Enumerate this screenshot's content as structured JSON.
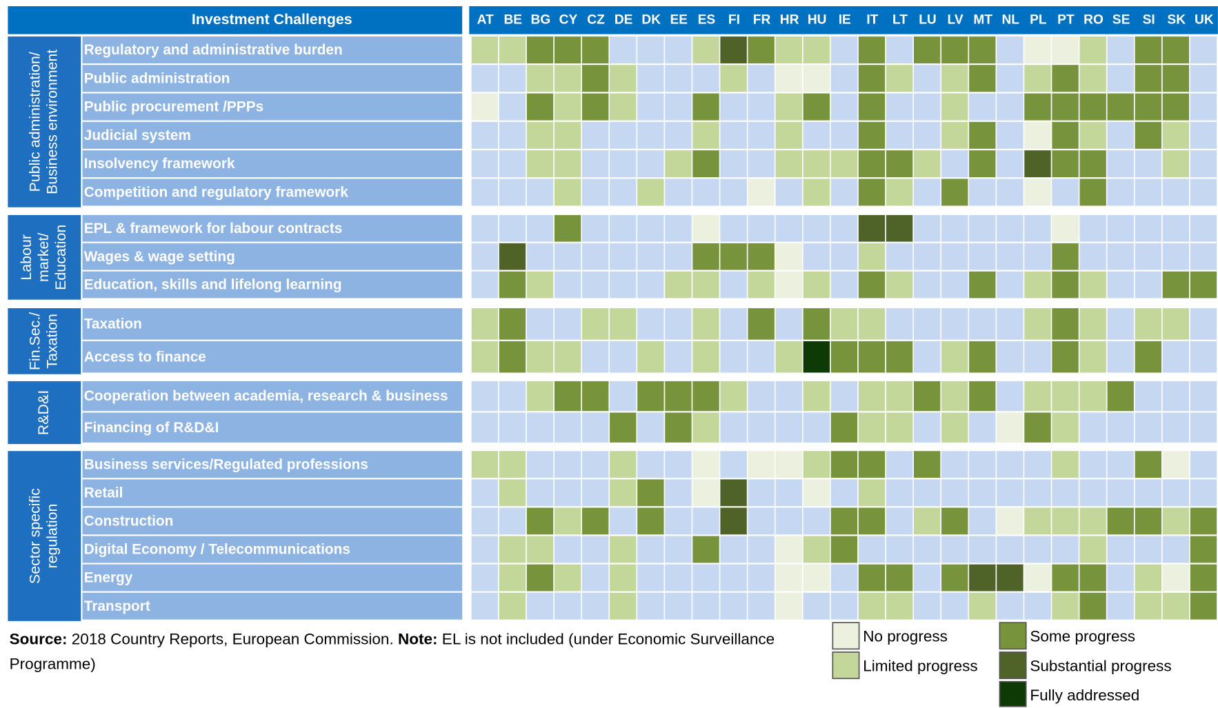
{
  "chart_data": {
    "type": "status-grid",
    "corner_title": "Investment Challenges",
    "columns": [
      "AT",
      "BE",
      "BG",
      "CY",
      "CZ",
      "DE",
      "DK",
      "EE",
      "ES",
      "FI",
      "FR",
      "HR",
      "HU",
      "IE",
      "IT",
      "LT",
      "LU",
      "LV",
      "MT",
      "NL",
      "PL",
      "PT",
      "RO",
      "SE",
      "SI",
      "SK",
      "UK"
    ],
    "empty_color": "#c5d7f1",
    "legend": [
      {
        "label": "No progress",
        "color": "#ebf1de"
      },
      {
        "label": "Limited progress",
        "color": "#c4d79b"
      },
      {
        "label": "Some progress",
        "color": "#77933c"
      },
      {
        "label": "Substantial progress",
        "color": "#4f6228"
      },
      {
        "label": "Fully addressed",
        "color": "#0d3a05"
      }
    ],
    "groups": [
      {
        "label_lines": [
          "Public administration/",
          "Business environment"
        ],
        "rows": [
          {
            "label": "Regulatory and administrative burden",
            "cells": [
              "Limited progress",
              "Limited progress",
              "Some progress",
              "Some progress",
              "Some progress",
              null,
              null,
              null,
              "Limited progress",
              "Substantial progress",
              "Some progress",
              "Limited progress",
              "Limited progress",
              null,
              "Some progress",
              null,
              "Some progress",
              "Some progress",
              "Some progress",
              null,
              "No progress",
              "No progress",
              "Limited progress",
              null,
              "Some progress",
              "Some progress",
              null
            ]
          },
          {
            "label": "Public administration",
            "cells": [
              null,
              null,
              "Limited progress",
              "Limited progress",
              "Some progress",
              "Limited progress",
              null,
              null,
              null,
              "Limited progress",
              null,
              "No progress",
              "No progress",
              null,
              "Some progress",
              "Limited progress",
              null,
              "Limited progress",
              "Some progress",
              null,
              "Limited progress",
              "Some progress",
              "Limited progress",
              null,
              "Some progress",
              "Some progress",
              null
            ]
          },
          {
            "label": "Public procurement /PPPs",
            "cells": [
              "No progress",
              null,
              "Some progress",
              "Limited progress",
              "Some progress",
              "Limited progress",
              null,
              null,
              "Some progress",
              null,
              null,
              "Limited progress",
              "Some progress",
              null,
              "Some progress",
              null,
              null,
              "Limited progress",
              null,
              null,
              "Some progress",
              "Some progress",
              "Some progress",
              "Some progress",
              "Some progress",
              "Some progress",
              null
            ]
          },
          {
            "label": "Judicial system",
            "cells": [
              null,
              null,
              "Limited progress",
              "Limited progress",
              null,
              null,
              null,
              null,
              "Limited progress",
              null,
              null,
              "Limited progress",
              null,
              null,
              "Some progress",
              null,
              null,
              "Limited progress",
              "Some progress",
              null,
              "No progress",
              "Some progress",
              "Limited progress",
              null,
              "Some progress",
              "Limited progress",
              null
            ]
          },
          {
            "label": "Insolvency framework",
            "cells": [
              null,
              null,
              "Limited progress",
              "Limited progress",
              null,
              null,
              null,
              "Limited progress",
              "Some progress",
              null,
              null,
              "Limited progress",
              "Limited progress",
              "Limited progress",
              "Some progress",
              "Some progress",
              "Limited progress",
              null,
              "Some progress",
              null,
              "Substantial progress",
              "Some progress",
              "Some progress",
              null,
              null,
              "Limited progress",
              null
            ]
          },
          {
            "label": "Competition and regulatory framework",
            "cells": [
              null,
              null,
              null,
              "Limited progress",
              null,
              null,
              "Limited progress",
              null,
              null,
              null,
              "No progress",
              null,
              "Limited progress",
              null,
              "Some progress",
              "Limited progress",
              null,
              "Some progress",
              null,
              null,
              "No progress",
              null,
              "Some progress",
              null,
              null,
              null,
              null
            ]
          }
        ]
      },
      {
        "label_lines": [
          "Labour",
          "market/",
          "Education"
        ],
        "rows": [
          {
            "label": "EPL & framework for labour contracts",
            "cells": [
              null,
              null,
              null,
              "Some progress",
              null,
              null,
              null,
              null,
              "No progress",
              null,
              null,
              null,
              null,
              null,
              "Substantial progress",
              "Substantial progress",
              null,
              null,
              null,
              null,
              null,
              "No progress",
              null,
              null,
              null,
              null,
              null
            ]
          },
          {
            "label": "Wages & wage setting",
            "cells": [
              null,
              "Substantial progress",
              null,
              null,
              null,
              null,
              null,
              null,
              "Some progress",
              "Some progress",
              "Some progress",
              "No progress",
              null,
              null,
              "Limited progress",
              null,
              null,
              null,
              null,
              null,
              null,
              "Some progress",
              null,
              null,
              null,
              null,
              null
            ]
          },
          {
            "label": "Education, skills and lifelong learning",
            "cells": [
              null,
              "Some progress",
              "Limited progress",
              null,
              null,
              null,
              null,
              "Limited progress",
              "Limited progress",
              null,
              "Limited progress",
              "No progress",
              "Limited progress",
              null,
              "Some progress",
              "Limited progress",
              null,
              null,
              "Some progress",
              null,
              "Limited progress",
              "Some progress",
              "Limited progress",
              null,
              null,
              "Some progress",
              "Some progress"
            ]
          }
        ]
      },
      {
        "label_lines": [
          "Fin.Sec./",
          "Taxation"
        ],
        "rows": [
          {
            "label": "Taxation",
            "cells": [
              "Limited progress",
              "Some progress",
              null,
              null,
              "Limited progress",
              "Limited progress",
              null,
              null,
              "Limited progress",
              null,
              "Some progress",
              null,
              "Some progress",
              "Limited progress",
              "Limited progress",
              null,
              null,
              null,
              null,
              null,
              "Limited progress",
              "Some progress",
              "Limited progress",
              null,
              "Limited progress",
              "Limited progress",
              null
            ]
          },
          {
            "label": "Access to finance",
            "cells": [
              "Limited progress",
              "Some progress",
              "Limited progress",
              "Limited progress",
              null,
              null,
              "Limited progress",
              null,
              "Limited progress",
              null,
              null,
              "Limited progress",
              "Fully addressed",
              "Some progress",
              "Some progress",
              "Some progress",
              null,
              "Limited progress",
              "Some progress",
              null,
              null,
              "Some progress",
              "Limited progress",
              null,
              "Some progress",
              null,
              null
            ]
          }
        ]
      },
      {
        "label_lines": [
          "R&D&I"
        ],
        "rows": [
          {
            "label": "Cooperation between academia, research & business",
            "cells": [
              null,
              null,
              "Limited progress",
              "Some progress",
              "Some progress",
              null,
              "Some progress",
              "Some progress",
              "Some progress",
              "Limited progress",
              null,
              null,
              "Limited progress",
              null,
              "Limited progress",
              "Limited progress",
              "Some progress",
              "Limited progress",
              "Some progress",
              null,
              "Limited progress",
              "Limited progress",
              "Limited progress",
              "Some progress",
              null,
              null,
              null
            ]
          },
          {
            "label": "Financing of R&D&I",
            "cells": [
              null,
              null,
              null,
              null,
              null,
              "Some progress",
              null,
              "Some progress",
              "Limited progress",
              null,
              null,
              null,
              null,
              "Some progress",
              "Limited progress",
              "Limited progress",
              null,
              "Limited progress",
              null,
              "No progress",
              "Some progress",
              "Limited progress",
              null,
              null,
              null,
              null,
              null
            ]
          }
        ]
      },
      {
        "label_lines": [
          "Sector specific",
          "regulation"
        ],
        "rows": [
          {
            "label": "Business services/Regulated professions",
            "cells": [
              "Limited progress",
              "Limited progress",
              null,
              null,
              null,
              "Limited progress",
              null,
              null,
              "No progress",
              null,
              "No progress",
              "No progress",
              "Limited progress",
              "Some progress",
              "Some progress",
              null,
              "Some progress",
              null,
              null,
              null,
              null,
              "Limited progress",
              null,
              null,
              "Some progress",
              "No progress",
              null
            ]
          },
          {
            "label": "Retail",
            "cells": [
              null,
              "Limited progress",
              null,
              null,
              null,
              "Limited progress",
              "Some progress",
              null,
              "No progress",
              "Substantial progress",
              null,
              null,
              "No progress",
              null,
              "Limited progress",
              null,
              null,
              null,
              null,
              null,
              null,
              null,
              null,
              null,
              null,
              null,
              null
            ]
          },
          {
            "label": "Construction",
            "cells": [
              null,
              null,
              "Some progress",
              "Limited progress",
              "Some progress",
              null,
              "Some progress",
              null,
              null,
              "Substantial progress",
              null,
              null,
              null,
              "Some progress",
              "Some progress",
              null,
              "Limited progress",
              "Some progress",
              null,
              "No progress",
              "Limited progress",
              "Limited progress",
              "Limited progress",
              "Some progress",
              "Some progress",
              "Limited progress",
              "Some progress"
            ]
          },
          {
            "label": "Digital Economy / Telecommunications",
            "cells": [
              null,
              "Limited progress",
              "Limited progress",
              null,
              null,
              "Limited progress",
              null,
              null,
              "Some progress",
              null,
              null,
              "No progress",
              "Limited progress",
              "Some progress",
              null,
              null,
              null,
              null,
              null,
              null,
              null,
              null,
              "Limited progress",
              null,
              null,
              null,
              "Some progress"
            ]
          },
          {
            "label": "Energy",
            "cells": [
              null,
              "Limited progress",
              "Some progress",
              "Limited progress",
              null,
              "Limited progress",
              null,
              null,
              null,
              null,
              null,
              "No progress",
              "No progress",
              null,
              "Some progress",
              "Some progress",
              null,
              "Some progress",
              "Substantial progress",
              "Substantial progress",
              "No progress",
              "Some progress",
              "Some progress",
              null,
              "Limited progress",
              "No progress",
              "Some progress"
            ]
          },
          {
            "label": "Transport",
            "cells": [
              null,
              "Limited progress",
              null,
              null,
              null,
              "Limited progress",
              null,
              null,
              null,
              null,
              null,
              "No progress",
              null,
              null,
              "Limited progress",
              "Limited progress",
              null,
              null,
              "Limited progress",
              null,
              null,
              "Limited progress",
              "Some progress",
              null,
              "Limited progress",
              "Limited progress",
              "Some progress"
            ]
          }
        ]
      }
    ],
    "source_label": "Source:",
    "source_text": "2018 Country Reports, European Commission.",
    "note_label": "Note:",
    "note_text": "EL is not included (under Economic Surveillance Programme)"
  }
}
